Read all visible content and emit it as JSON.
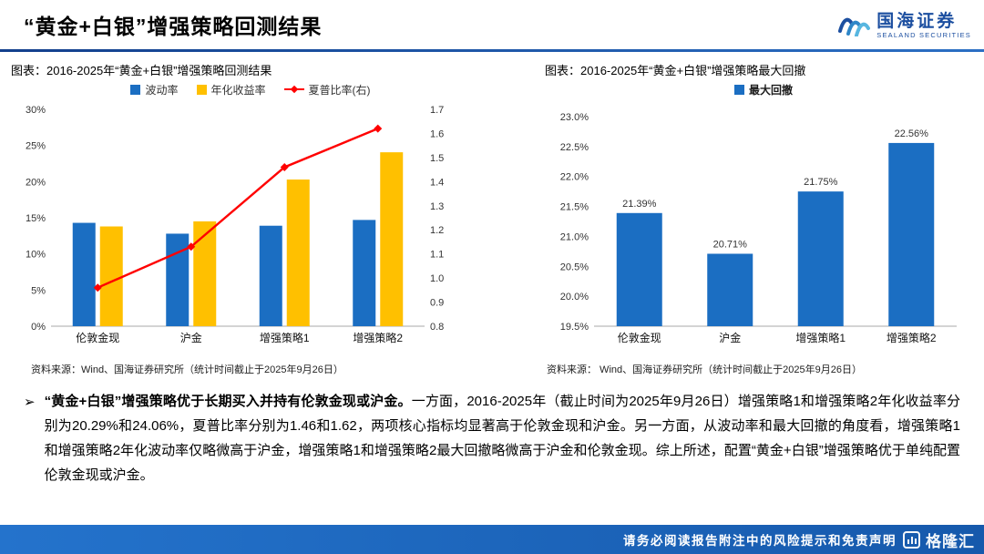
{
  "page": {
    "title": "“黄金+白银”增强策略回测结果",
    "logo": {
      "name": "国海证券",
      "sub": "SEALAND SECURITIES"
    },
    "footer": "请务必阅读报告附注中的风险提示和免责声明",
    "watermark": "格隆汇"
  },
  "charts": [
    {
      "caption": "图表：2016-2025年“黄金+白银”增强策略回测结果",
      "source": "资料来源：Wind、国海证券研究所（统计时间截止于2025年9月26日）"
    },
    {
      "caption": "图表：2016-2025年“黄金+白银”增强策略最大回撤",
      "source": "资料来源： Wind、国海证券研究所（统计时间截止于2025年9月26日）"
    }
  ],
  "chart_data": [
    {
      "type": "bar",
      "title": "2016-2025年“黄金+白银”增强策略回测结果",
      "categories": [
        "伦敦金现",
        "沪金",
        "增强策略1",
        "增强策略2"
      ],
      "series": [
        {
          "name": "波动率",
          "series_type": "bar",
          "axis": "left",
          "color": "#1B6EC2",
          "values": [
            14.3,
            12.8,
            13.9,
            14.7
          ]
        },
        {
          "name": "年化收益率",
          "series_type": "bar",
          "axis": "left",
          "color": "#FFC000",
          "values": [
            13.8,
            14.5,
            20.29,
            24.06
          ]
        },
        {
          "name": "夏普比率(右)",
          "series_type": "line",
          "axis": "right",
          "color": "#FF0000",
          "values": [
            0.96,
            1.13,
            1.46,
            1.62
          ]
        }
      ],
      "left_axis": {
        "min": 0,
        "max": 30,
        "step": 5,
        "ticks": [
          "0%",
          "5%",
          "10%",
          "15%",
          "20%",
          "25%",
          "30%"
        ]
      },
      "right_axis": {
        "min": 0.8,
        "max": 1.7,
        "step": 0.1,
        "ticks": [
          "0.8",
          "0.9",
          "1.0",
          "1.1",
          "1.2",
          "1.3",
          "1.4",
          "1.5",
          "1.6",
          "1.7"
        ]
      },
      "legend_position": "top",
      "grid": false
    },
    {
      "type": "bar",
      "title": "2016-2025年“黄金+白银”增强策略最大回撤",
      "categories": [
        "伦敦金现",
        "沪金",
        "增强策略1",
        "增强策略2"
      ],
      "series": [
        {
          "name": "最大回撤",
          "series_type": "bar",
          "axis": "left",
          "color": "#1B6EC2",
          "values": [
            21.39,
            20.71,
            21.75,
            22.56
          ],
          "labels": [
            "21.39%",
            "20.71%",
            "21.75%",
            "22.56%"
          ]
        }
      ],
      "left_axis": {
        "min": 19.5,
        "max": 23.0,
        "step": 0.5,
        "ticks": [
          "19.5%",
          "20.0%",
          "20.5%",
          "21.0%",
          "21.5%",
          "22.0%",
          "22.5%",
          "23.0%"
        ]
      },
      "legend_position": "top",
      "legend_bold": true,
      "grid": false
    }
  ],
  "analysis": {
    "bullet": "➢",
    "lead": "“黄金+白银”增强策略优于长期买入并持有伦敦金现或沪金。",
    "rest": "一方面，2016-2025年（截止时间为2025年9月26日）增强策略1和增强策略2年化收益率分别为20.29%和24.06%，夏普比率分别为1.46和1.62，两项核心指标均显著高于伦敦金现和沪金。另一方面，从波动率和最大回撤的角度看，增强策略1和增强策略2年化波动率仅略微高于沪金，增强策略1和增强策略2最大回撤略微高于沪金和伦敦金现。综上所述，配置“黄金+白银”增强策略优于单纯配置伦敦金现或沪金。"
  }
}
